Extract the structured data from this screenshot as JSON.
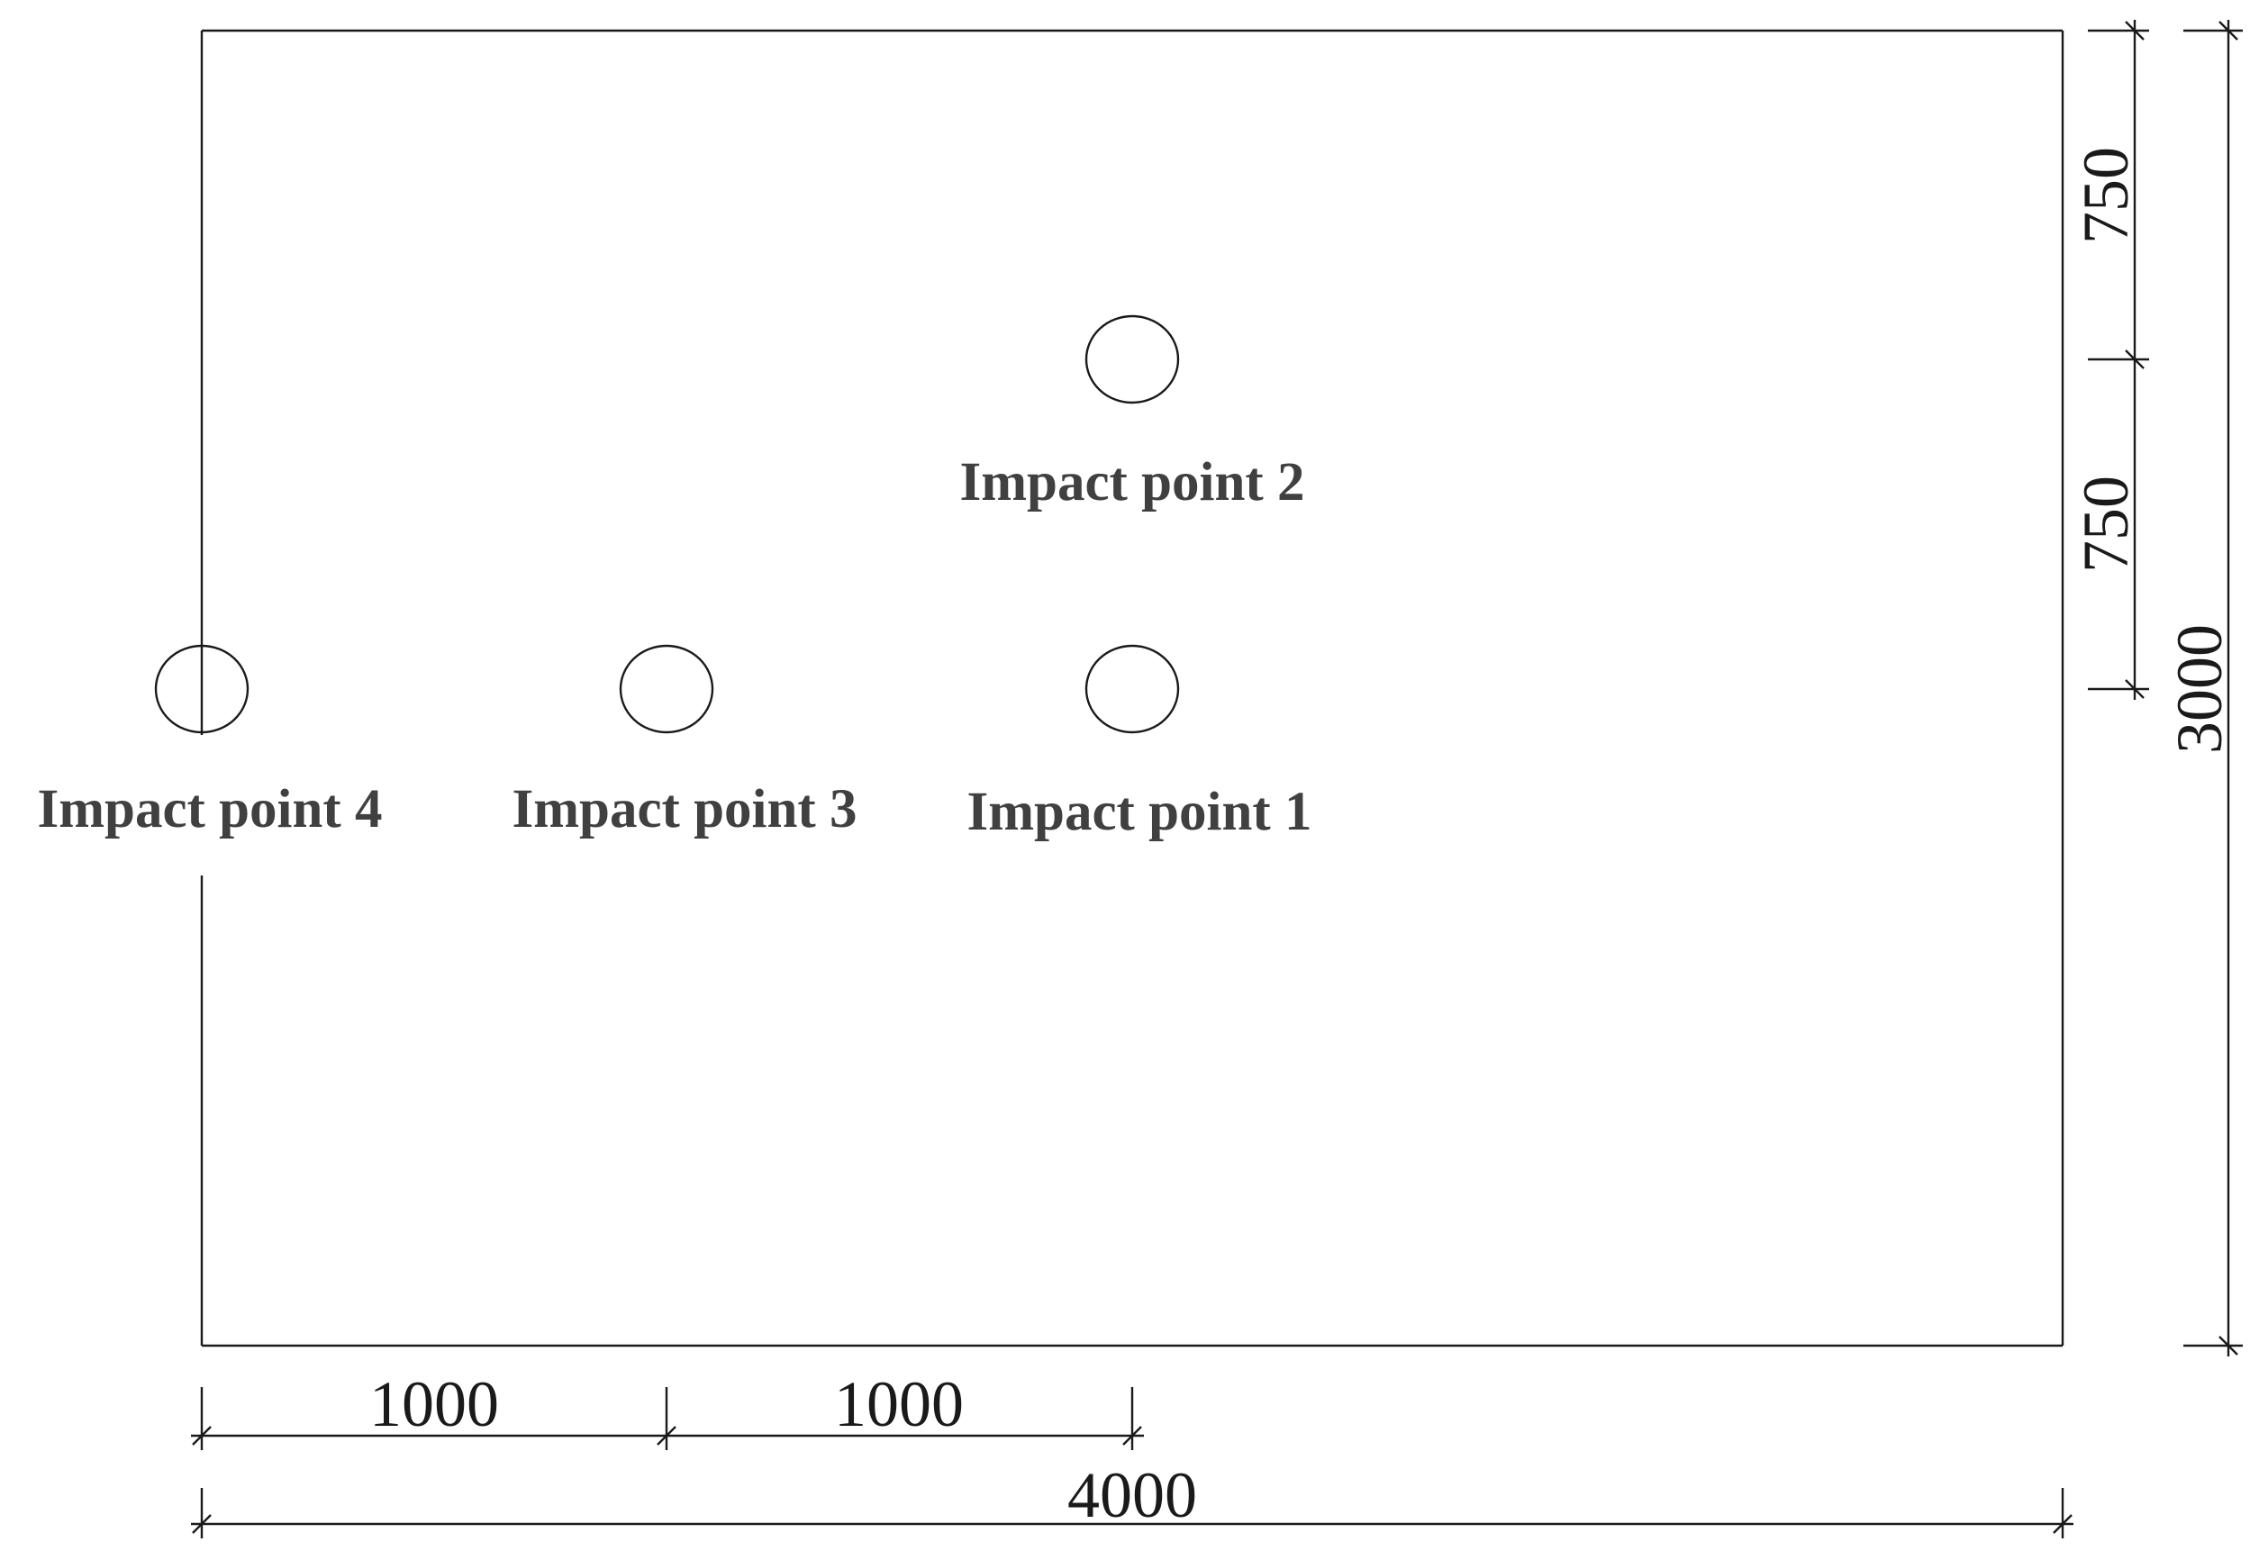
{
  "diagram": {
    "impact_points": [
      {
        "label": "Impact point 1"
      },
      {
        "label": "Impact point 2"
      },
      {
        "label": "Impact point 3"
      },
      {
        "label": "Impact point 4"
      }
    ],
    "dimensions": {
      "spacing_x_1": "1000",
      "spacing_x_2": "1000",
      "total_width": "4000",
      "spacing_y_1": "750",
      "spacing_y_2": "750",
      "total_height": "3000"
    }
  }
}
